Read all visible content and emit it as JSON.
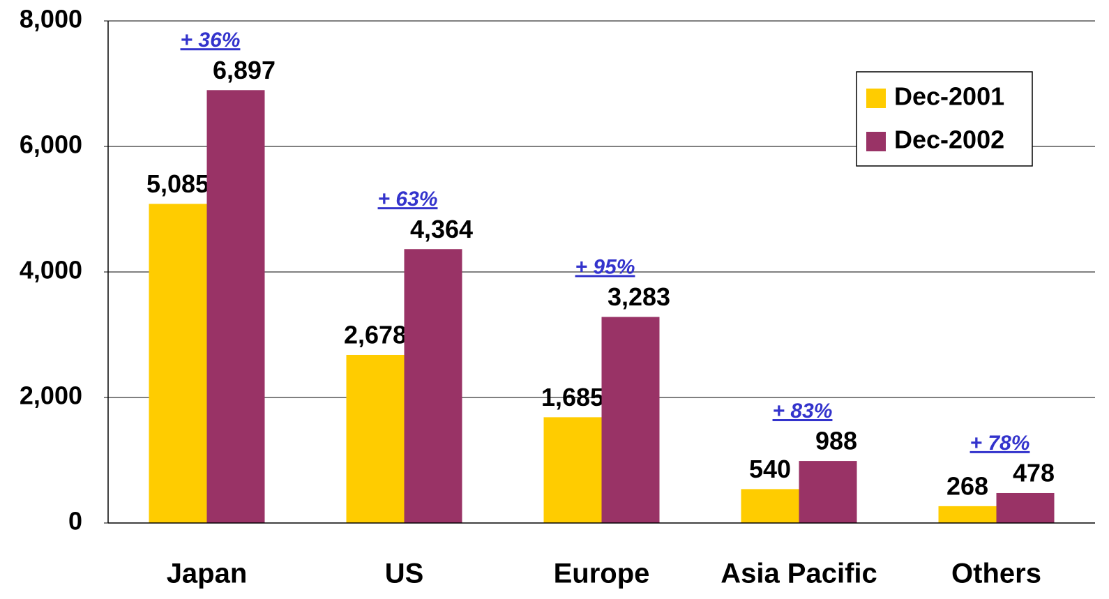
{
  "chart_data": {
    "type": "bar",
    "categories": [
      "Japan",
      "US",
      "Europe",
      "Asia Pacific",
      "Others"
    ],
    "series": [
      {
        "name": "Dec-2001",
        "color": "#ffcc00",
        "values": [
          5085,
          2678,
          1685,
          540,
          268
        ],
        "value_labels": [
          "5,085",
          "2,678",
          "1,685",
          "540",
          "268"
        ]
      },
      {
        "name": "Dec-2002",
        "color": "#993366",
        "values": [
          6897,
          4364,
          3283,
          988,
          478
        ],
        "value_labels": [
          "6,897",
          "4,364",
          "3,283",
          "988",
          "478"
        ]
      }
    ],
    "annotations": [
      "+ 36%",
      "+ 63%",
      "+ 95%",
      "+ 83%",
      "+ 78%"
    ],
    "ylim": [
      0,
      8000
    ],
    "yticks": [
      0,
      {
        "value": 2000,
        "label": "2,000"
      },
      {
        "value": 4000,
        "label": "4,000"
      },
      {
        "value": 6000,
        "label": "6,000"
      },
      {
        "value": 8000,
        "label": "8,000"
      }
    ],
    "grid": true,
    "legend": "top-right"
  }
}
